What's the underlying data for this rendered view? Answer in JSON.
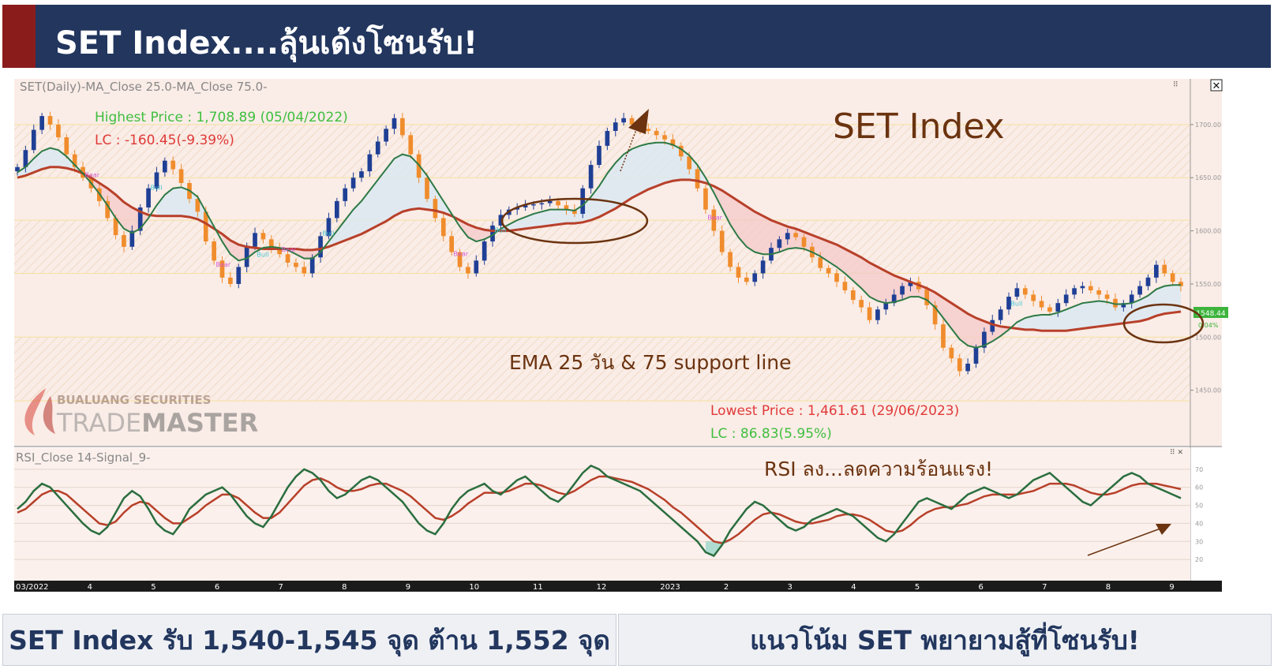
{
  "header": {
    "title": "SET Index....ลุ้นเด้งโซนรับ!"
  },
  "chart_data": [
    {
      "type": "candlestick",
      "panel_label": "SET(Daily)-MA_Close 25.0-MA_Close 75.0-",
      "title": "SET Index",
      "x_ticks": [
        "03/2022",
        "4",
        "5",
        "6",
        "7",
        "8",
        "9",
        "10",
        "11",
        "12",
        "2023",
        "2",
        "3",
        "4",
        "5",
        "6",
        "7",
        "8",
        "9"
      ],
      "ylim": [
        1400,
        1740
      ],
      "y_ticks": [
        1450,
        1500,
        1550,
        1600,
        1650,
        1700
      ],
      "last_price_label": "1548.44",
      "last_change_label": "0.04%",
      "grid": true,
      "series": [
        {
          "name": "SET",
          "color_up": "#1f3f95",
          "color_down": "#f08c2c",
          "values": [
            1660,
            1676,
            1695,
            1708,
            1700,
            1688,
            1672,
            1660,
            1650,
            1640,
            1628,
            1612,
            1596,
            1585,
            1600,
            1622,
            1640,
            1655,
            1666,
            1658,
            1645,
            1630,
            1618,
            1590,
            1572,
            1556,
            1550,
            1566,
            1585,
            1598,
            1592,
            1584,
            1578,
            1570,
            1566,
            1560,
            1575,
            1595,
            1612,
            1628,
            1640,
            1650,
            1656,
            1672,
            1684,
            1696,
            1706,
            1690,
            1672,
            1650,
            1630,
            1612,
            1595,
            1580,
            1566,
            1560,
            1572,
            1590,
            1605,
            1615,
            1620,
            1622,
            1624,
            1625,
            1626,
            1628,
            1624,
            1620,
            1616,
            1640,
            1662,
            1680,
            1694,
            1702,
            1706,
            1700,
            1696,
            1694,
            1690,
            1686,
            1680,
            1670,
            1658,
            1640,
            1620,
            1600,
            1580,
            1566,
            1556,
            1552,
            1560,
            1572,
            1584,
            1592,
            1598,
            1594,
            1585,
            1575,
            1565,
            1560,
            1552,
            1544,
            1535,
            1528,
            1516,
            1526,
            1532,
            1540,
            1548,
            1552,
            1545,
            1530,
            1512,
            1490,
            1480,
            1468,
            1475,
            1490,
            1505,
            1516,
            1526,
            1538,
            1546,
            1540,
            1534,
            1528,
            1524,
            1532,
            1540,
            1546,
            1548,
            1544,
            1540,
            1536,
            1528,
            1532,
            1540,
            1548,
            1556,
            1568,
            1560,
            1552,
            1548
          ]
        },
        {
          "name": "EMA 25",
          "color": "#2e7a45",
          "values": [
            1655,
            1660,
            1668,
            1675,
            1678,
            1676,
            1670,
            1662,
            1654,
            1645,
            1635,
            1624,
            1612,
            1602,
            1598,
            1602,
            1612,
            1624,
            1634,
            1640,
            1641,
            1638,
            1632,
            1618,
            1604,
            1590,
            1578,
            1572,
            1574,
            1580,
            1584,
            1585,
            1584,
            1582,
            1578,
            1574,
            1574,
            1580,
            1590,
            1600,
            1610,
            1620,
            1628,
            1638,
            1648,
            1658,
            1668,
            1672,
            1670,
            1662,
            1652,
            1640,
            1628,
            1616,
            1604,
            1594,
            1590,
            1592,
            1596,
            1602,
            1606,
            1610,
            1613,
            1616,
            1618,
            1620,
            1620,
            1620,
            1619,
            1624,
            1632,
            1642,
            1654,
            1664,
            1672,
            1677,
            1680,
            1682,
            1683,
            1683,
            1681,
            1677,
            1671,
            1662,
            1650,
            1636,
            1621,
            1606,
            1594,
            1585,
            1580,
            1578,
            1578,
            1580,
            1583,
            1584,
            1583,
            1580,
            1576,
            1571,
            1566,
            1560,
            1553,
            1546,
            1538,
            1534,
            1532,
            1533,
            1535,
            1538,
            1538,
            1535,
            1528,
            1518,
            1508,
            1498,
            1492,
            1490,
            1492,
            1496,
            1501,
            1507,
            1514,
            1518,
            1520,
            1521,
            1521,
            1523,
            1526,
            1529,
            1532,
            1533,
            1534,
            1533,
            1531,
            1531,
            1532,
            1535,
            1539,
            1545,
            1548,
            1549,
            1549
          ]
        },
        {
          "name": "EMA 75",
          "color": "#b8402a",
          "values": [
            1650,
            1652,
            1655,
            1658,
            1660,
            1660,
            1659,
            1657,
            1654,
            1650,
            1645,
            1640,
            1634,
            1627,
            1622,
            1618,
            1615,
            1614,
            1614,
            1614,
            1614,
            1613,
            1611,
            1607,
            1602,
            1597,
            1591,
            1587,
            1585,
            1584,
            1583,
            1583,
            1583,
            1583,
            1583,
            1582,
            1582,
            1583,
            1585,
            1588,
            1591,
            1594,
            1597,
            1601,
            1605,
            1609,
            1614,
            1618,
            1620,
            1621,
            1620,
            1619,
            1617,
            1614,
            1610,
            1606,
            1603,
            1601,
            1600,
            1600,
            1600,
            1601,
            1602,
            1603,
            1604,
            1605,
            1606,
            1607,
            1607,
            1608,
            1610,
            1613,
            1617,
            1621,
            1626,
            1631,
            1635,
            1639,
            1642,
            1645,
            1647,
            1648,
            1648,
            1647,
            1645,
            1642,
            1638,
            1633,
            1628,
            1623,
            1618,
            1614,
            1610,
            1607,
            1604,
            1602,
            1599,
            1596,
            1593,
            1590,
            1587,
            1583,
            1579,
            1575,
            1570,
            1566,
            1562,
            1558,
            1555,
            1552,
            1549,
            1546,
            1542,
            1537,
            1532,
            1527,
            1522,
            1518,
            1515,
            1512,
            1510,
            1509,
            1508,
            1507,
            1507,
            1506,
            1506,
            1506,
            1506,
            1507,
            1508,
            1509,
            1510,
            1511,
            1512,
            1513,
            1514,
            1515,
            1517,
            1520,
            1522,
            1523,
            1524
          ]
        }
      ],
      "annotations": [
        {
          "text": "Highest Price : 1,708.89 (05/04/2022)",
          "color": "#3fbf3f"
        },
        {
          "text": "LC : -160.45(-9.39%)",
          "color": "#e03a3a"
        },
        {
          "text": "EMA 25 วัน & 75 support line",
          "color": "#6b3310"
        },
        {
          "text": "Lowest Price : 1,461.61 (29/06/2023)",
          "color": "#e03a3a"
        },
        {
          "text": "LC : 86.83(5.95%)",
          "color": "#3fbf3f"
        }
      ],
      "marker_labels": [
        "Bear",
        "Bull"
      ],
      "watermark": {
        "line1": "BUALUANG SECURITIES",
        "line2_a": "TRADE",
        "line2_b": "MASTER"
      }
    },
    {
      "type": "line",
      "panel_label": "RSI_Close 14-Signal_9-",
      "ylim": [
        10,
        80
      ],
      "y_ticks": [
        20,
        30,
        40,
        50,
        60,
        70
      ],
      "annotation": "RSI ลง...ลดความร้อนแรง!",
      "series": [
        {
          "name": "RSI",
          "color": "#2b6e3f",
          "values": [
            48,
            52,
            58,
            62,
            60,
            55,
            50,
            45,
            40,
            36,
            34,
            38,
            46,
            54,
            58,
            55,
            48,
            40,
            36,
            34,
            40,
            48,
            52,
            56,
            58,
            60,
            56,
            50,
            44,
            40,
            38,
            44,
            52,
            60,
            66,
            70,
            68,
            64,
            58,
            54,
            56,
            60,
            64,
            66,
            64,
            60,
            56,
            52,
            46,
            40,
            36,
            34,
            40,
            48,
            54,
            58,
            60,
            62,
            58,
            56,
            60,
            64,
            66,
            62,
            58,
            54,
            52,
            56,
            62,
            68,
            72,
            70,
            66,
            64,
            62,
            60,
            58,
            54,
            50,
            46,
            42,
            38,
            34,
            30,
            24,
            22,
            28,
            36,
            42,
            48,
            52,
            50,
            46,
            42,
            38,
            36,
            38,
            42,
            44,
            46,
            48,
            46,
            44,
            40,
            36,
            32,
            30,
            34,
            40,
            46,
            52,
            54,
            52,
            50,
            48,
            52,
            56,
            58,
            60,
            58,
            56,
            54,
            56,
            60,
            64,
            66,
            68,
            64,
            60,
            56,
            52,
            50,
            54,
            58,
            62,
            66,
            68,
            66,
            62,
            60,
            58,
            56,
            54
          ]
        },
        {
          "name": "Signal",
          "color": "#b8402a",
          "values": [
            46,
            48,
            52,
            56,
            58,
            58,
            56,
            52,
            48,
            44,
            40,
            39,
            41,
            46,
            50,
            52,
            51,
            47,
            43,
            40,
            40,
            43,
            46,
            50,
            53,
            56,
            56,
            54,
            50,
            46,
            43,
            43,
            46,
            51,
            56,
            61,
            64,
            65,
            63,
            60,
            58,
            58,
            59,
            61,
            62,
            62,
            60,
            58,
            55,
            51,
            47,
            43,
            42,
            44,
            47,
            51,
            54,
            57,
            57,
            57,
            58,
            60,
            62,
            62,
            61,
            59,
            57,
            56,
            58,
            61,
            64,
            66,
            66,
            65,
            64,
            63,
            61,
            59,
            56,
            53,
            49,
            46,
            42,
            38,
            34,
            30,
            29,
            31,
            34,
            38,
            42,
            45,
            46,
            45,
            43,
            41,
            40,
            40,
            41,
            42,
            44,
            45,
            45,
            44,
            42,
            39,
            36,
            35,
            36,
            39,
            43,
            46,
            48,
            49,
            49,
            50,
            51,
            53,
            55,
            56,
            56,
            56,
            56,
            57,
            58,
            60,
            62,
            62,
            62,
            61,
            59,
            57,
            56,
            56,
            57,
            59,
            61,
            62,
            62,
            62,
            61,
            60,
            59
          ]
        }
      ]
    }
  ],
  "footer": {
    "left": "SET Index รับ 1,540-1,545 จุด ต้าน 1,552 จุด",
    "right": "แนวโน้ม SET พยายามสู้ที่โซนรับ!"
  }
}
